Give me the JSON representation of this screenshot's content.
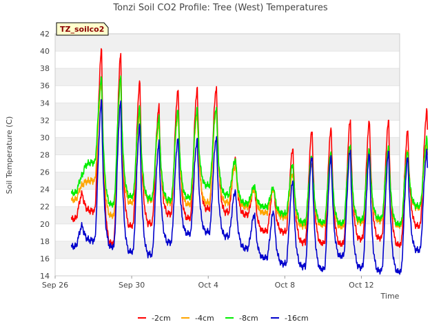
{
  "chart_data": {
    "type": "line",
    "title": "Tonzi Soil CO2 Profile: Tree (West) Temperatures",
    "xlabel": "Time",
    "ylabel": "Soil Temperature (C)",
    "tag": "TZ_soilco2",
    "xlim": [
      "Sep 26",
      "Oct 14"
    ],
    "ylim": [
      14,
      42
    ],
    "yticks": [
      14,
      16,
      18,
      20,
      22,
      24,
      26,
      28,
      30,
      32,
      34,
      36,
      38,
      40,
      42
    ],
    "xticks": [
      "Sep 26",
      "Sep 30",
      "Oct 4",
      "Oct 8",
      "Oct 12"
    ],
    "grid": "horizontal bands",
    "legend": "bottom",
    "series_note_x": "daily maxima and minima per day; days from Sep 26 shown by the x axis",
    "series": [
      {
        "name": "-2cm",
        "color": "#ff0000",
        "daily_max": [
          23.5,
          40.0,
          39.5,
          36.3,
          33.5,
          35.5,
          35.6,
          35.8,
          27.7,
          24.2,
          24.2,
          28.7,
          30.8,
          31.0,
          31.9,
          31.8,
          31.8,
          30.7,
          33.0
        ],
        "daily_min": [
          20.6,
          21.5,
          17.8,
          19.8,
          20.1,
          21.2,
          20.7,
          21.8,
          21.4,
          21.1,
          19.2,
          19.1,
          17.9,
          17.8,
          17.7,
          18.3,
          18.4,
          17.6,
          19.8
        ]
      },
      {
        "name": "-4cm",
        "color": "#ffa500",
        "daily_max": [
          24.5,
          36.2,
          36.5,
          32.7,
          31.5,
          32.7,
          32.8,
          33.3,
          26.8,
          24.0,
          24.0,
          25.8,
          27.0,
          27.7,
          28.7,
          28.2,
          28.5,
          28.4,
          29.2
        ],
        "daily_min": [
          22.8,
          25.0,
          21.0,
          22.5,
          22.8,
          22.5,
          22.3,
          22.5,
          22.5,
          22.0,
          21.3,
          20.8,
          19.8,
          19.9,
          19.7,
          20.2,
          20.4,
          19.8,
          21.9
        ]
      },
      {
        "name": "-8cm",
        "color": "#00ee00",
        "daily_max": [
          25.6,
          36.7,
          36.9,
          33.4,
          32.2,
          33.2,
          33.3,
          33.4,
          27.5,
          24.4,
          24.2,
          26.9,
          27.9,
          28.2,
          29.0,
          28.5,
          28.8,
          28.2,
          29.8
        ],
        "daily_min": [
          23.6,
          27.1,
          22.3,
          23.2,
          23.0,
          22.8,
          23.1,
          24.5,
          23.4,
          22.4,
          22.0,
          21.2,
          20.2,
          20.2,
          20.1,
          20.5,
          20.7,
          20.0,
          22.1
        ]
      },
      {
        "name": "-16cm",
        "color": "#0000cc",
        "daily_max": [
          19.8,
          34.1,
          34.0,
          31.3,
          29.3,
          29.9,
          29.7,
          30.0,
          23.9,
          21.1,
          21.5,
          25.0,
          27.8,
          27.8,
          28.4,
          28.0,
          28.2,
          27.6,
          28.3
        ],
        "daily_min": [
          17.4,
          18.1,
          17.4,
          16.8,
          16.5,
          17.9,
          18.9,
          19.1,
          18.6,
          17.2,
          16.1,
          15.4,
          15.1,
          14.8,
          16.3,
          15.0,
          14.6,
          14.5,
          17.0
        ]
      }
    ]
  }
}
